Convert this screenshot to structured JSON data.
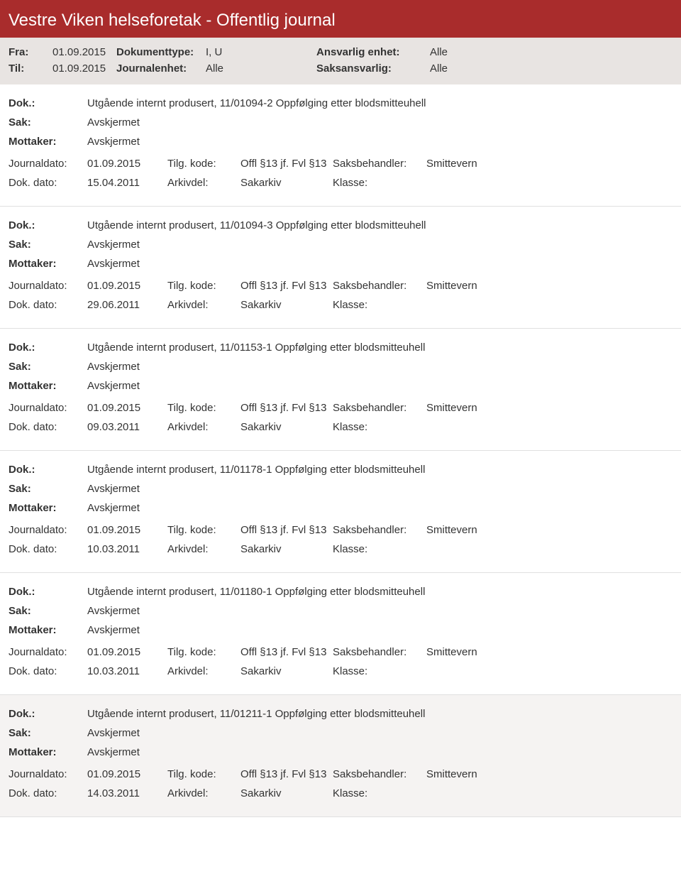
{
  "header": {
    "title": "Vestre Viken helseforetak - Offentlig journal",
    "fra_label": "Fra:",
    "fra_value": "01.09.2015",
    "til_label": "Til:",
    "til_value": "01.09.2015",
    "doktype_label": "Dokumenttype:",
    "doktype_value": "I, U",
    "journalenhet_label": "Journalenhet:",
    "journalenhet_value": "Alle",
    "ansvarlig_label": "Ansvarlig enhet:",
    "ansvarlig_value": "Alle",
    "saksansvarlig_label": "Saksansvarlig:",
    "saksansvarlig_value": "Alle"
  },
  "labels": {
    "dok": "Dok.:",
    "sak": "Sak:",
    "mottaker": "Mottaker:",
    "journaldato": "Journaldato:",
    "dokdato": "Dok. dato:",
    "tilgkode": "Tilg. kode:",
    "arkivdel": "Arkivdel:",
    "saksbehandler": "Saksbehandler:",
    "klasse": "Klasse:"
  },
  "entries": [
    {
      "dok": "Utgående internt produsert, 11/01094-2 Oppfølging etter blodsmitteuhell",
      "sak": "Avskjermet",
      "mottaker": "Avskjermet",
      "journaldato": "01.09.2015",
      "dokdato": "15.04.2011",
      "tilgkode": "Offl §13 jf. Fvl §13",
      "arkivdel": "Sakarkiv",
      "saksbehandler": "Smittevern",
      "klasse": ""
    },
    {
      "dok": "Utgående internt produsert, 11/01094-3 Oppfølging etter blodsmitteuhell",
      "sak": "Avskjermet",
      "mottaker": "Avskjermet",
      "journaldato": "01.09.2015",
      "dokdato": "29.06.2011",
      "tilgkode": "Offl §13 jf. Fvl §13",
      "arkivdel": "Sakarkiv",
      "saksbehandler": "Smittevern",
      "klasse": ""
    },
    {
      "dok": "Utgående internt produsert, 11/01153-1 Oppfølging etter blodsmitteuhell",
      "sak": "Avskjermet",
      "mottaker": "Avskjermet",
      "journaldato": "01.09.2015",
      "dokdato": "09.03.2011",
      "tilgkode": "Offl §13 jf. Fvl §13",
      "arkivdel": "Sakarkiv",
      "saksbehandler": "Smittevern",
      "klasse": ""
    },
    {
      "dok": "Utgående internt produsert, 11/01178-1 Oppfølging etter blodsmitteuhell",
      "sak": "Avskjermet",
      "mottaker": "Avskjermet",
      "journaldato": "01.09.2015",
      "dokdato": "10.03.2011",
      "tilgkode": "Offl §13 jf. Fvl §13",
      "arkivdel": "Sakarkiv",
      "saksbehandler": "Smittevern",
      "klasse": ""
    },
    {
      "dok": "Utgående internt produsert, 11/01180-1 Oppfølging etter blodsmitteuhell",
      "sak": "Avskjermet",
      "mottaker": "Avskjermet",
      "journaldato": "01.09.2015",
      "dokdato": "10.03.2011",
      "tilgkode": "Offl §13 jf. Fvl §13",
      "arkivdel": "Sakarkiv",
      "saksbehandler": "Smittevern",
      "klasse": ""
    },
    {
      "dok": "Utgående internt produsert, 11/01211-1 Oppfølging etter blodsmitteuhell",
      "sak": "Avskjermet",
      "mottaker": "Avskjermet",
      "journaldato": "01.09.2015",
      "dokdato": "14.03.2011",
      "tilgkode": "Offl §13 jf. Fvl §13",
      "arkivdel": "Sakarkiv",
      "saksbehandler": "Smittevern",
      "klasse": ""
    }
  ]
}
